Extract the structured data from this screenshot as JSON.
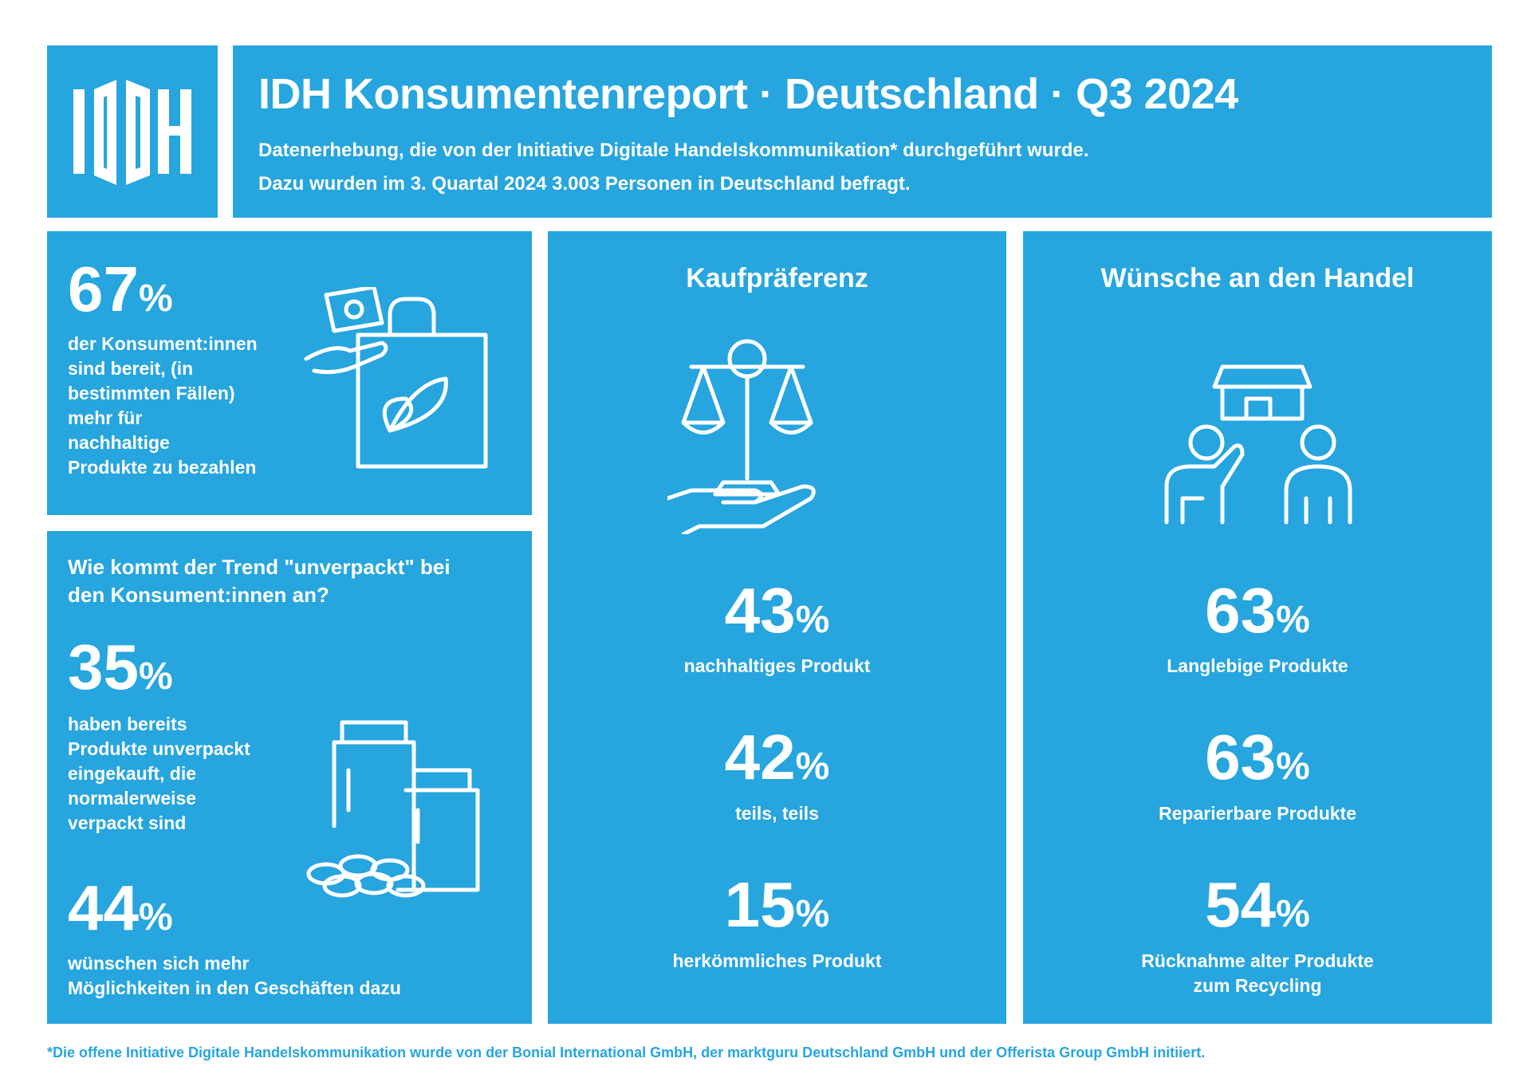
{
  "header": {
    "title": "IDH Konsumentenreport · Deutschland · Q3 2024",
    "subtitle": [
      "Datenerhebung, die von der Initiative Digitale Handelskommunikation* durchgeführt wurde.",
      "Dazu wurden im 3. Quartal 2024 3.003 Personen in Deutschland befragt."
    ]
  },
  "panels": [
    {
      "stats": [
        {
          "value": 67,
          "unit": "%",
          "label": [
            "der Konsument:innen",
            "sind bereit, (in",
            "bestimmten Fällen)",
            "mehr für",
            "nachhaltige",
            "Produkte zu bezahlen"
          ]
        }
      ]
    },
    {
      "heading": [
        "Wie kommt der Trend \"unverpackt\" bei",
        "den Konsument:innen an?"
      ],
      "stats": [
        {
          "value": 35,
          "unit": "%",
          "label": [
            "haben bereits",
            "Produkte unverpackt",
            "eingekauft, die",
            "normalerweise",
            "verpackt sind"
          ]
        },
        {
          "value": 44,
          "unit": "%",
          "label": [
            "wünschen sich mehr",
            "Möglichkeiten in den Geschäften dazu"
          ]
        }
      ]
    },
    {
      "heading": [
        "Kaufpräferenz"
      ],
      "stats": [
        {
          "value": 43,
          "unit": "%",
          "label": [
            "nachhaltiges Produkt"
          ]
        },
        {
          "value": 42,
          "unit": "%",
          "label": [
            "teils, teils"
          ]
        },
        {
          "value": 15,
          "unit": "%",
          "label": [
            "herkömmliches Produkt"
          ]
        }
      ]
    },
    {
      "heading": [
        "Wünsche an den Handel"
      ],
      "stats": [
        {
          "value": 63,
          "unit": "%",
          "label": [
            "Langlebige Produkte"
          ]
        },
        {
          "value": 63,
          "unit": "%",
          "label": [
            "Reparierbare Produkte"
          ]
        },
        {
          "value": 54,
          "unit": "%",
          "label": [
            "Rücknahme alter Produkte",
            "zum Recycling"
          ]
        }
      ]
    }
  ],
  "footnote": "*Die offene Initiative Digitale Handelskommunikation wurde von der Bonial International GmbH, der marktguru Deutschland GmbH und der Offerista Group GmbH initiiert."
}
